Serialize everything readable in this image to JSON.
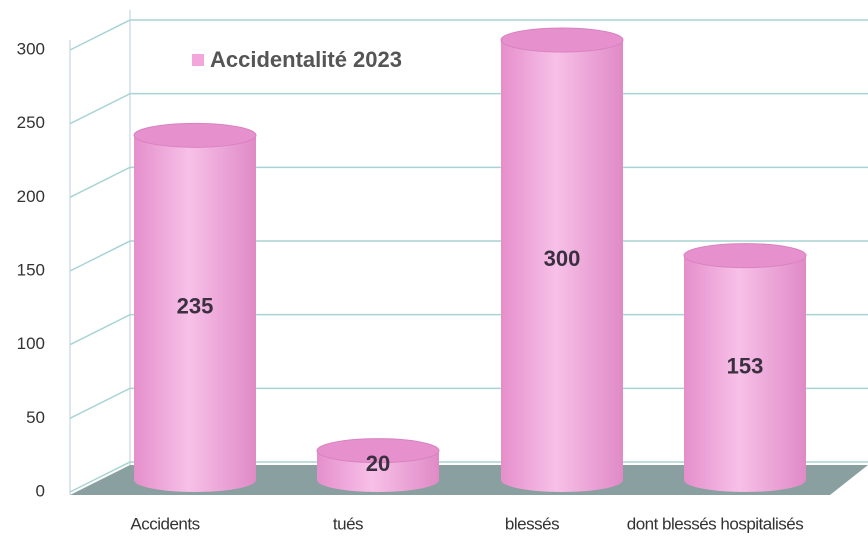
{
  "chart_data": {
    "type": "bar3d",
    "categories": [
      "Accidents",
      "tués",
      "blessés",
      "dont blessés hospitalisés"
    ],
    "series": [
      {
        "name": "Accidentalité 2023",
        "color": "#f2a6dc",
        "values": [
          235,
          20,
          300,
          153
        ]
      }
    ],
    "ylim": [
      0,
      300
    ],
    "yticks": [
      0,
      50,
      100,
      150,
      200,
      250,
      300
    ],
    "grid": true
  }
}
